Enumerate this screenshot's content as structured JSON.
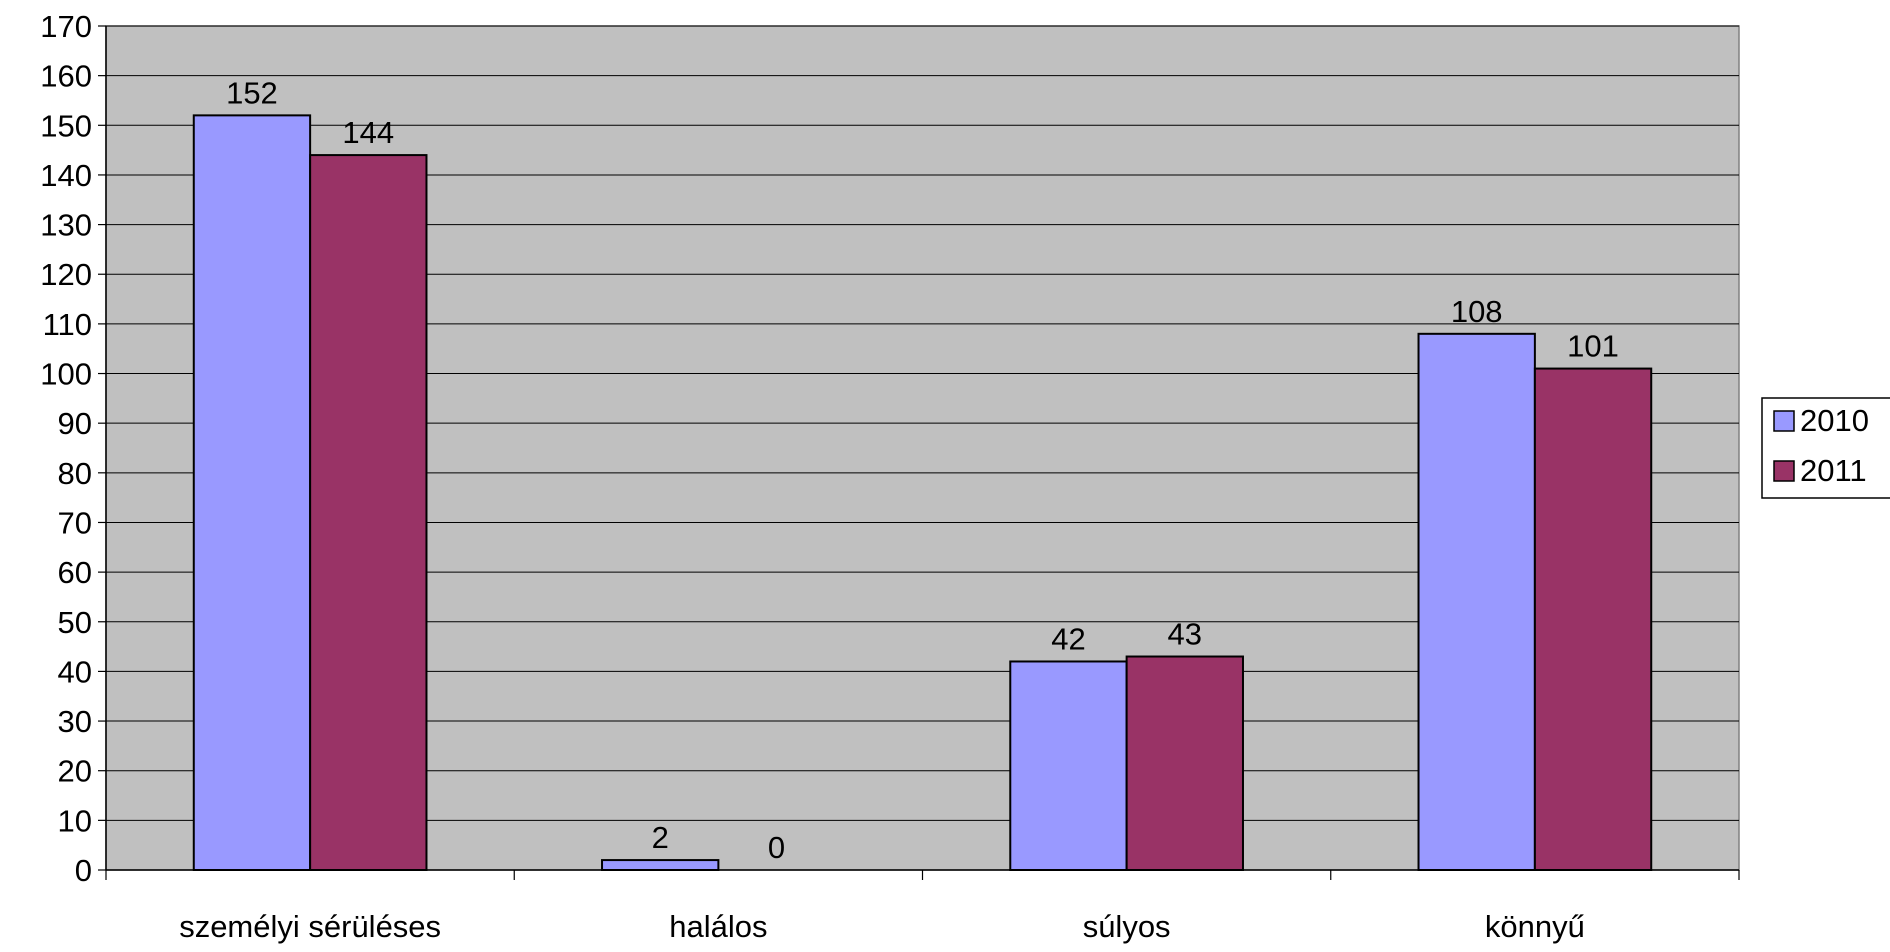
{
  "chart_data": {
    "type": "bar",
    "title": "",
    "xlabel": "",
    "ylabel": "",
    "ylim": [
      0,
      170
    ],
    "y_ticks": [
      0,
      10,
      20,
      30,
      40,
      50,
      60,
      70,
      80,
      90,
      100,
      110,
      120,
      130,
      140,
      150,
      160,
      170
    ],
    "grid": true,
    "legend_position": "right",
    "categories": [
      "személyi sérüléses",
      "halálos",
      "súlyos",
      "könnyű"
    ],
    "series": [
      {
        "name": "2010",
        "values": [
          152,
          2,
          42,
          108
        ],
        "color": "#9999ff"
      },
      {
        "name": "2011",
        "values": [
          144,
          0,
          43,
          101
        ],
        "color": "#993366"
      }
    ],
    "plot_background": "#c0c0c0"
  }
}
